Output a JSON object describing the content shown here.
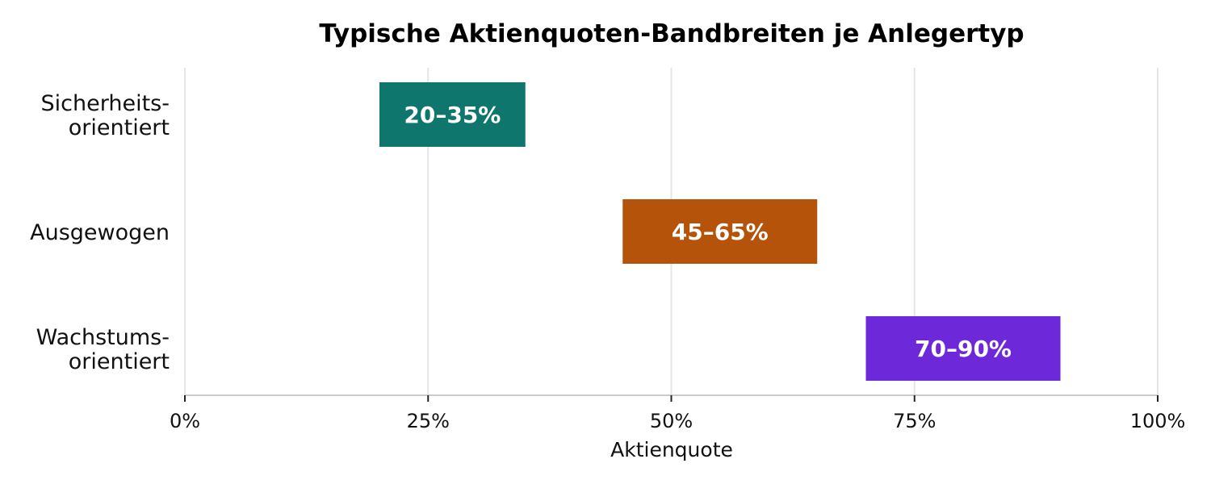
{
  "chart_data": {
    "type": "bar",
    "orientation": "horizontal",
    "title": "Typische Aktienquoten-Bandbreiten je Anlegertyp",
    "xlabel": "Aktienquote",
    "ylabel": "",
    "xlim": [
      0,
      100
    ],
    "x_ticks": [
      0,
      25,
      50,
      75,
      100
    ],
    "x_tick_labels": [
      "0%",
      "25%",
      "50%",
      "75%",
      "100%"
    ],
    "grid": true,
    "categories": [
      [
        "Sicherheits-",
        "orientiert"
      ],
      [
        "Ausgewogen"
      ],
      [
        "Wachstums-",
        "orientiert"
      ]
    ],
    "ranges": [
      {
        "start": 20,
        "end": 35,
        "label": "20–35%",
        "color": "#0f766e"
      },
      {
        "start": 45,
        "end": 65,
        "label": "45–65%",
        "color": "#b45309"
      },
      {
        "start": 70,
        "end": 90,
        "label": "70–90%",
        "color": "#6d28d9"
      }
    ]
  }
}
